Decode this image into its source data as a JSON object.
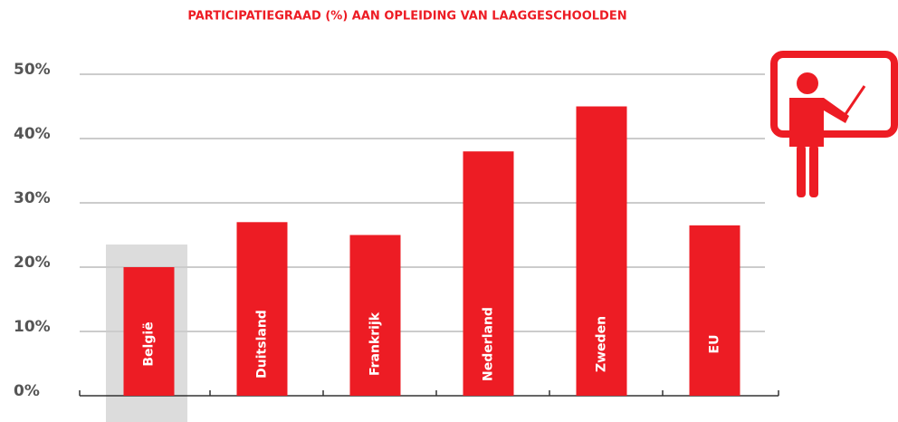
{
  "chart_data": {
    "type": "bar",
    "title": "PARTICIPATIEGRAAD (%) AAN OPLEIDING VAN LAAGGESCHOOLDEN",
    "categories": [
      "België",
      "Duitsland",
      "Frankrijk",
      "Nederland",
      "Zweden",
      "EU"
    ],
    "values": [
      20,
      27,
      25,
      38,
      45,
      26.5
    ],
    "color": "#ed1c24",
    "ylim": [
      0,
      50
    ],
    "yticks": [
      {
        "value": 0,
        "label": "0%"
      },
      {
        "value": 10,
        "label": "10%"
      },
      {
        "value": 20,
        "label": "20%"
      },
      {
        "value": 30,
        "label": "30%"
      },
      {
        "value": 40,
        "label": "40%"
      },
      {
        "value": 50,
        "label": "50%"
      }
    ],
    "grid": true
  }
}
